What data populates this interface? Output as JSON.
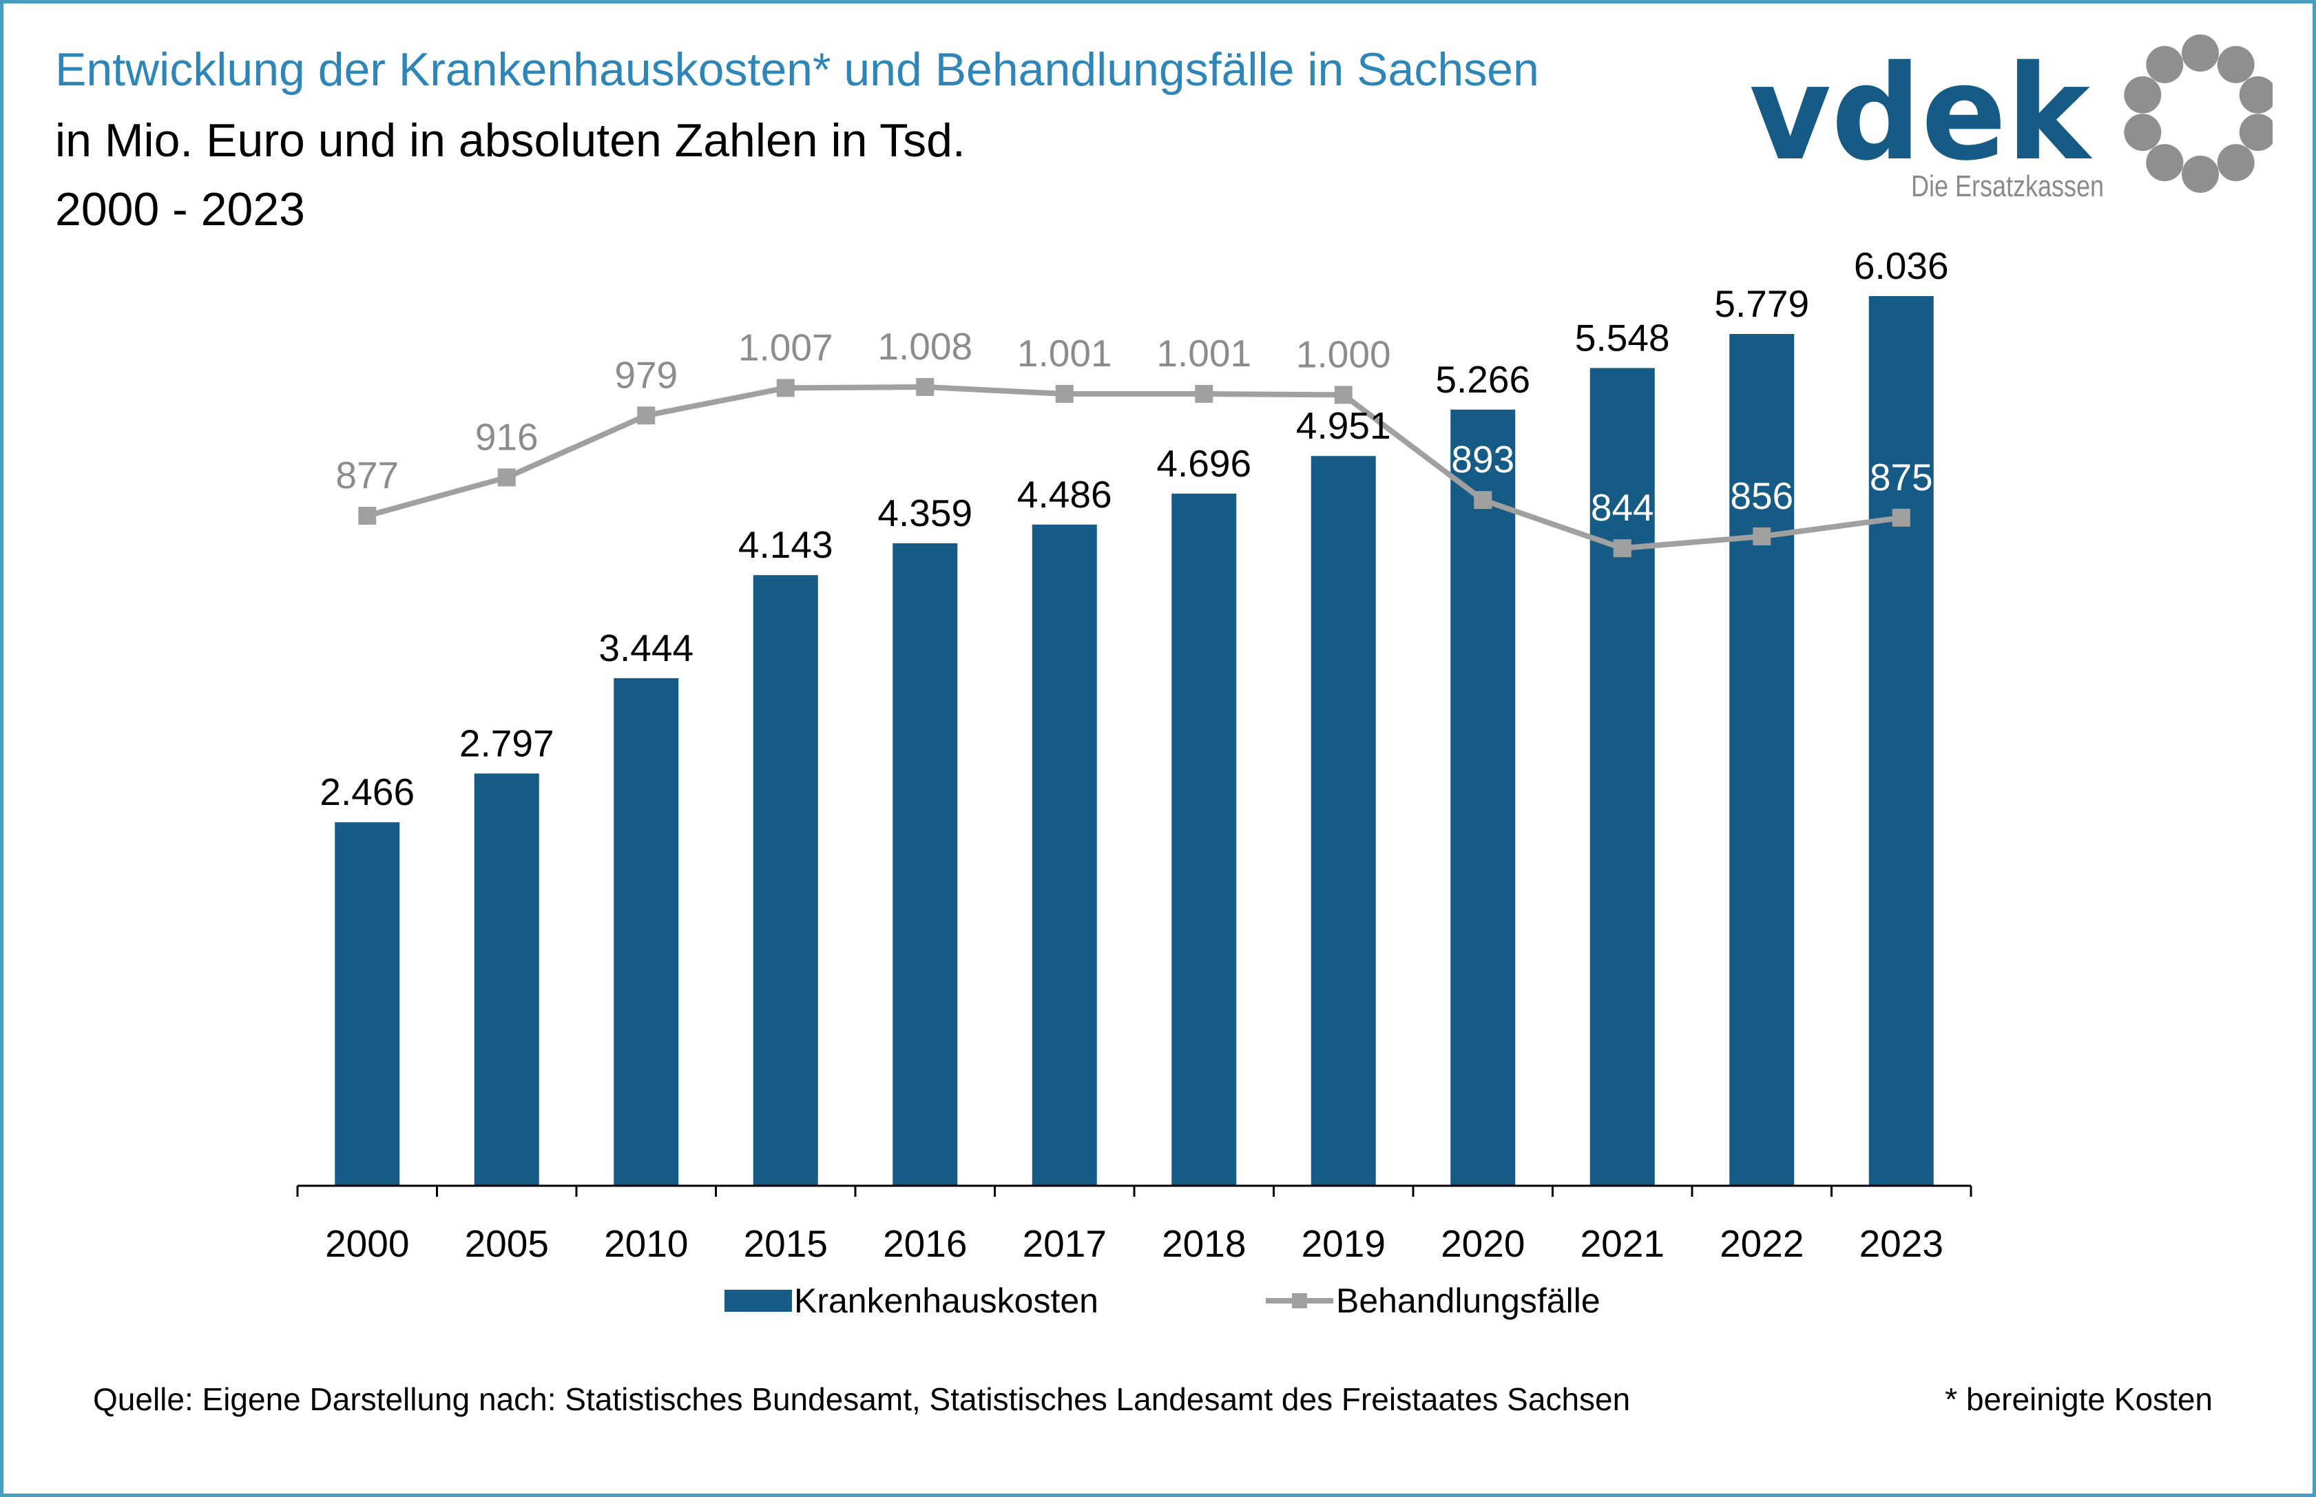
{
  "title": "Entwicklung der Krankenhauskosten* und Behandlungsfälle in Sachsen",
  "subtitle": "in Mio. Euro und in absoluten Zahlen in Tsd.",
  "period": "2000 - 2023",
  "logo": {
    "text": "vdek",
    "tagline": "Die Ersatzkassen"
  },
  "source": "Quelle: Eigene Darstellung nach: Statistisches Bundesamt, Statistisches Landesamt des Freistaates Sachsen",
  "footnote": "* bereinigte Kosten",
  "colors": {
    "bars": "#165a86",
    "line": "#a0a0a0",
    "title": "#2e86b8",
    "frame": "#4a9cc0"
  },
  "chart_data": {
    "type": "bar",
    "categories": [
      "2000",
      "2005",
      "2010",
      "2015",
      "2016",
      "2017",
      "2018",
      "2019",
      "2020",
      "2021",
      "2022",
      "2023"
    ],
    "series": [
      {
        "name": "Krankenhauskosten",
        "type": "bar",
        "values": [
          2466,
          2797,
          3444,
          4143,
          4359,
          4486,
          4696,
          4951,
          5266,
          5548,
          5779,
          6036
        ],
        "labels": [
          "2.466",
          "2.797",
          "3.444",
          "4.143",
          "4.359",
          "4.486",
          "4.696",
          "4.951",
          "5.266",
          "5.548",
          "5.779",
          "6.036"
        ]
      },
      {
        "name": "Behandlungsfälle",
        "type": "line",
        "marker": "square",
        "values": [
          877,
          916,
          979,
          1007,
          1008,
          1001,
          1001,
          1000,
          893,
          844,
          856,
          875
        ],
        "labels": [
          "877",
          "916",
          "979",
          "1.007",
          "1.008",
          "1.001",
          "1.001",
          "1.000",
          "893",
          "844",
          "856",
          "875"
        ]
      }
    ],
    "y_bars_range": [
      0,
      6500
    ],
    "y_line_range": [
      0,
      1200
    ],
    "grid": false,
    "legend": "bottom"
  }
}
